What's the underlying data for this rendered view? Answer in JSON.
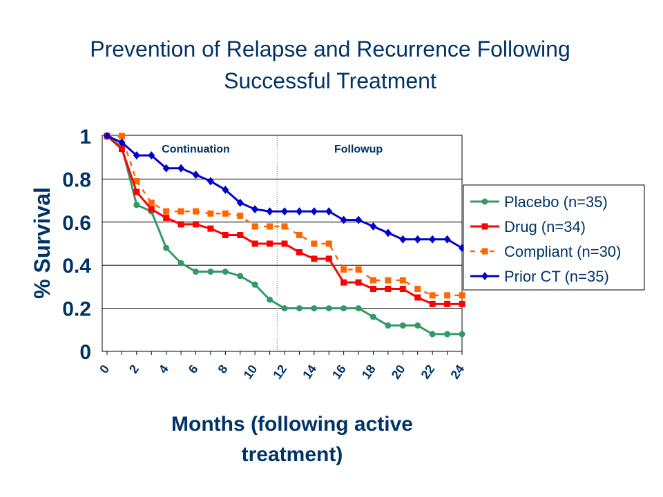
{
  "title_line1": "Prevention of Relapse and Recurrence Following",
  "title_line2": "Successful Treatment",
  "chart_data": {
    "type": "line",
    "title": "Prevention of Relapse and Recurrence Following Successful Treatment",
    "xlabel_line1": "Months (following active",
    "xlabel_line2": "treatment)",
    "ylabel": "% Survival",
    "xlim": [
      0,
      24
    ],
    "ylim": [
      0,
      1
    ],
    "x_ticks": [
      "0",
      "2",
      "4",
      "6",
      "8",
      "10",
      "12",
      "14",
      "16",
      "18",
      "20",
      "22",
      "24"
    ],
    "y_ticks": [
      "0",
      "0.2",
      "0.4",
      "0.6",
      "0.8",
      "1"
    ],
    "grid": "horizontal",
    "phase_labels": [
      {
        "text": "Continuation",
        "x": 6
      },
      {
        "text": "Followup",
        "x": 17
      }
    ],
    "divider_x": 11.5,
    "legend_position": "right",
    "series": [
      {
        "name": "Placebo (n=35)",
        "color": "#339966",
        "marker": "circle",
        "dashed": false,
        "x": [
          0,
          1,
          2,
          3,
          4,
          5,
          6,
          7,
          8,
          9,
          10,
          11,
          12,
          13,
          14,
          15,
          16,
          17,
          18,
          19,
          20,
          21,
          22,
          23,
          24
        ],
        "y": [
          1.0,
          0.95,
          0.68,
          0.65,
          0.48,
          0.41,
          0.37,
          0.37,
          0.37,
          0.35,
          0.31,
          0.24,
          0.2,
          0.2,
          0.2,
          0.2,
          0.2,
          0.2,
          0.16,
          0.12,
          0.12,
          0.12,
          0.08,
          0.08,
          0.08
        ]
      },
      {
        "name": "Drug (n=34)",
        "color": "#ff0000",
        "marker": "square",
        "dashed": false,
        "x": [
          0,
          1,
          2,
          3,
          4,
          5,
          6,
          7,
          8,
          9,
          10,
          11,
          12,
          13,
          14,
          15,
          16,
          17,
          18,
          19,
          20,
          21,
          22,
          23,
          24
        ],
        "y": [
          1.0,
          0.94,
          0.74,
          0.66,
          0.62,
          0.59,
          0.59,
          0.57,
          0.54,
          0.54,
          0.5,
          0.5,
          0.5,
          0.46,
          0.43,
          0.43,
          0.32,
          0.32,
          0.29,
          0.29,
          0.29,
          0.25,
          0.22,
          0.22,
          0.22
        ]
      },
      {
        "name": "Compliant (n=30)",
        "color": "#ff6600",
        "marker": "square",
        "dashed": true,
        "x": [
          0,
          1,
          2,
          3,
          4,
          5,
          6,
          7,
          8,
          9,
          10,
          11,
          12,
          13,
          14,
          15,
          16,
          17,
          18,
          19,
          20,
          21,
          22,
          23,
          24
        ],
        "y": [
          1.0,
          1.0,
          0.79,
          0.69,
          0.65,
          0.65,
          0.65,
          0.64,
          0.64,
          0.63,
          0.58,
          0.58,
          0.58,
          0.54,
          0.5,
          0.5,
          0.38,
          0.38,
          0.33,
          0.33,
          0.33,
          0.29,
          0.26,
          0.26,
          0.26
        ]
      },
      {
        "name": "Prior CT (n=35)",
        "color": "#0000cc",
        "marker": "diamond",
        "dashed": false,
        "x": [
          0,
          1,
          2,
          3,
          4,
          5,
          6,
          7,
          8,
          9,
          10,
          11,
          12,
          13,
          14,
          15,
          16,
          17,
          18,
          19,
          20,
          21,
          22,
          23,
          24
        ],
        "y": [
          1.0,
          0.97,
          0.91,
          0.91,
          0.85,
          0.85,
          0.82,
          0.79,
          0.75,
          0.69,
          0.66,
          0.65,
          0.65,
          0.65,
          0.65,
          0.65,
          0.61,
          0.61,
          0.58,
          0.55,
          0.52,
          0.52,
          0.52,
          0.52,
          0.48
        ]
      }
    ]
  }
}
